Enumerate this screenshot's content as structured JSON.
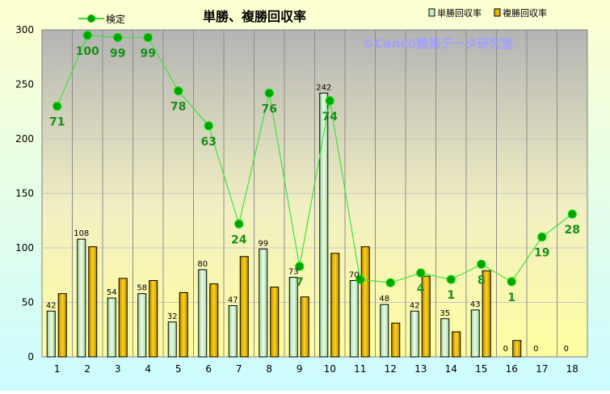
{
  "chart_data": {
    "type": "bar",
    "title": "単勝、複勝回収率",
    "watermark": "©Caniの競馬データ研究室",
    "categories": [
      "1",
      "2",
      "3",
      "4",
      "5",
      "6",
      "7",
      "8",
      "9",
      "10",
      "11",
      "12",
      "13",
      "14",
      "15",
      "16",
      "17",
      "18"
    ],
    "y_ticks": [
      "0",
      "50",
      "100",
      "150",
      "200",
      "250",
      "300"
    ],
    "ylim": [
      0,
      300
    ],
    "grid": true,
    "legend_position": "top",
    "series": [
      {
        "name": "単勝回収率",
        "kind": "bar",
        "color": "#c8f0c8",
        "values": [
          42,
          108,
          54,
          58,
          32,
          80,
          47,
          99,
          73,
          242,
          70,
          48,
          42,
          35,
          43,
          0,
          0,
          0
        ],
        "labels": [
          "42",
          "108",
          "54",
          "58",
          "32",
          "80",
          "47",
          "99",
          "73",
          "242",
          "70",
          "48",
          "42",
          "35",
          "43",
          "0",
          "0",
          "0"
        ]
      },
      {
        "name": "複勝回収率",
        "kind": "bar",
        "color": "#e6b400",
        "values": [
          58,
          101,
          72,
          70,
          59,
          67,
          92,
          64,
          55,
          95,
          101,
          31,
          74,
          23,
          79,
          15,
          0,
          0
        ]
      },
      {
        "name": "検定",
        "kind": "line",
        "color": "#00cc00",
        "values": [
          230,
          295,
          293,
          293,
          244,
          212,
          122,
          242,
          83,
          235,
          71,
          68,
          77,
          71,
          85,
          69,
          110,
          131
        ],
        "labels": [
          "71",
          "100",
          "99",
          "99",
          "78",
          "63",
          "24",
          "76",
          "7",
          "74",
          "",
          "",
          "4",
          "1",
          "8",
          "1",
          "19",
          "28"
        ]
      }
    ]
  }
}
